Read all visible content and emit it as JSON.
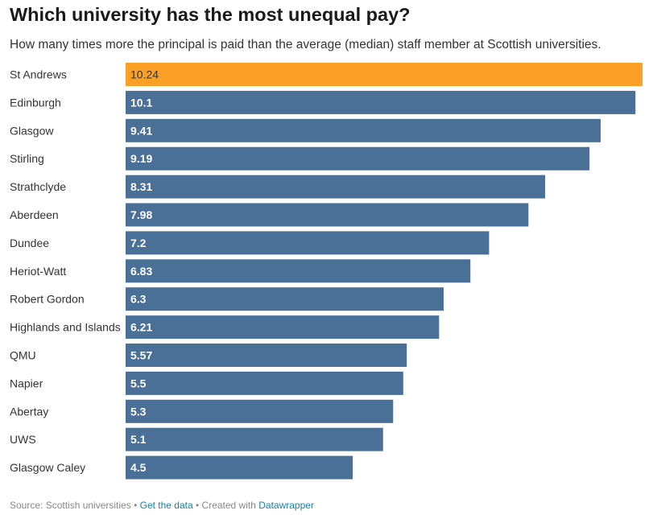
{
  "chart_data": {
    "type": "bar",
    "orientation": "horizontal",
    "title": "Which university has the most unequal pay?",
    "subtitle": "How many times more the principal is paid than the average (median) staff member at Scottish universities.",
    "categories": [
      "St Andrews",
      "Edinburgh",
      "Glasgow",
      "Stirling",
      "Strathclyde",
      "Aberdeen",
      "Dundee",
      "Heriot-Watt",
      "Robert Gordon",
      "Highlands and Islands",
      "QMU",
      "Napier",
      "Abertay",
      "UWS",
      "Glasgow Caley"
    ],
    "values": [
      10.24,
      10.1,
      9.41,
      9.19,
      8.31,
      7.98,
      7.2,
      6.83,
      6.3,
      6.21,
      5.57,
      5.5,
      5.3,
      5.1,
      4.5
    ],
    "value_labels": [
      "10.24",
      "10.1",
      "9.41",
      "9.19",
      "8.31",
      "7.98",
      "7.2",
      "6.83",
      "6.3",
      "6.21",
      "5.57",
      "5.5",
      "5.3",
      "5.1",
      "4.5"
    ],
    "xlim": [
      0,
      10.24
    ],
    "grid": false,
    "legend": "none",
    "colors": {
      "default": "#4a7098",
      "highlight": "#fba026"
    },
    "highlight_index": 0
  },
  "footer": {
    "source": "Source: Scottish universities",
    "sep1": " • ",
    "data_link": "Get the data",
    "sep2": " • ",
    "created_with": "Created with ",
    "tool_link": "Datawrapper"
  }
}
